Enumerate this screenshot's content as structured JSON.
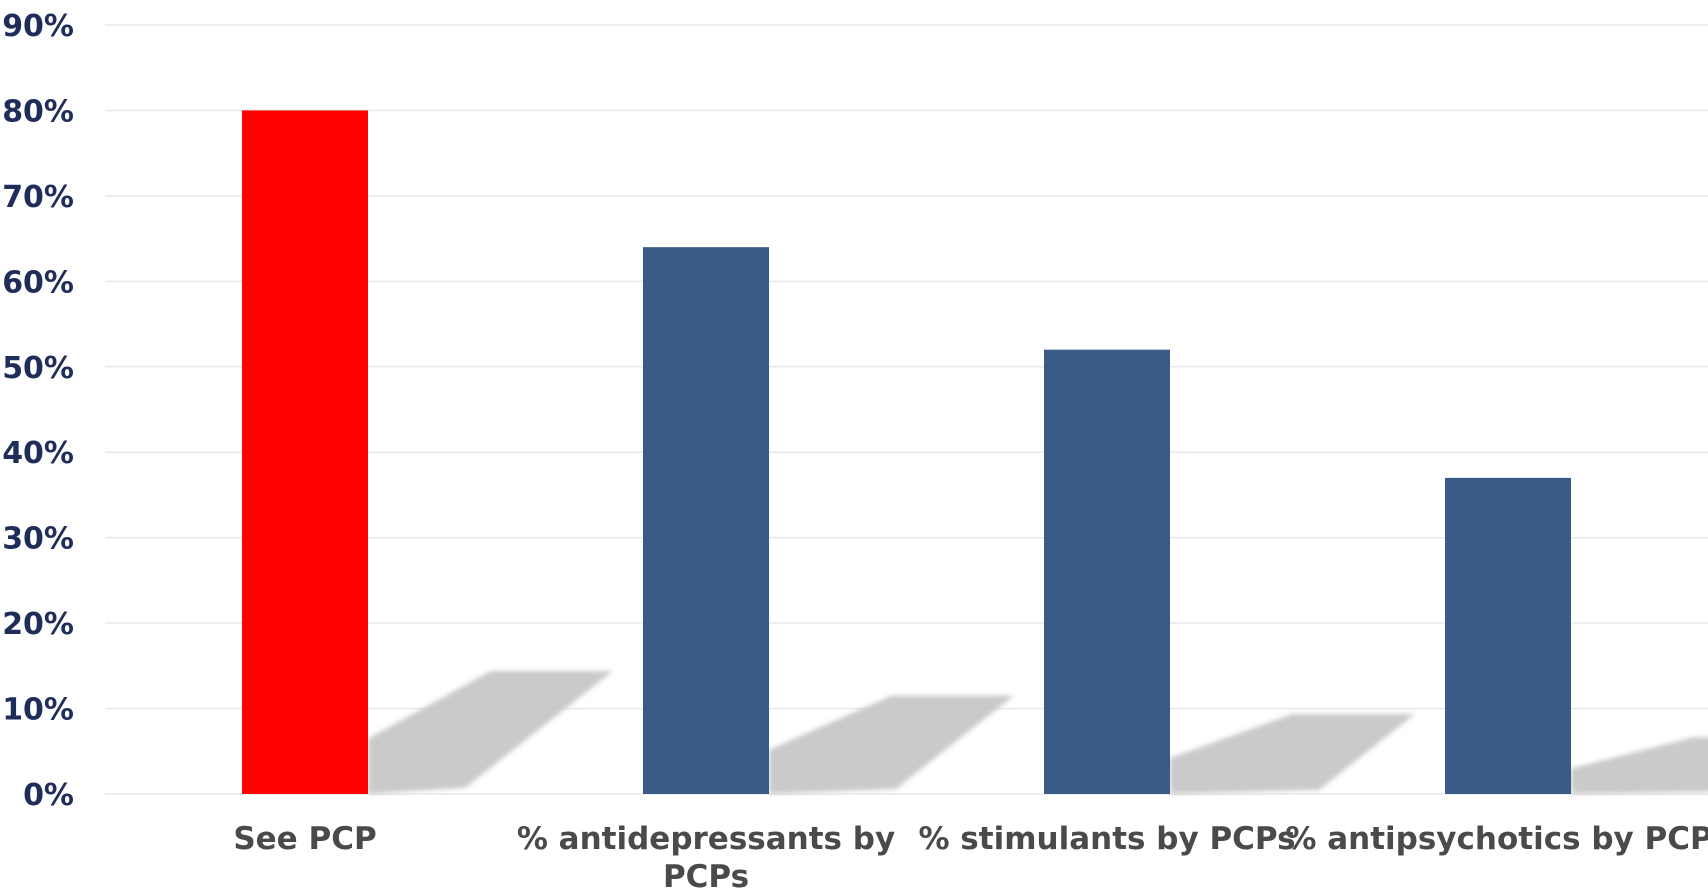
{
  "chart_data": {
    "type": "bar",
    "categories": [
      [
        "See PCP"
      ],
      [
        "% antidepressants by",
        "PCPs"
      ],
      [
        "% stimulants by PCPs"
      ],
      [
        "% antipsychotics by PCPs"
      ]
    ],
    "values": [
      80,
      64,
      52,
      37
    ],
    "ylim": [
      0,
      90
    ],
    "y_ticks": [
      "0%",
      "10%",
      "20%",
      "30%",
      "40%",
      "50%",
      "60%",
      "70%",
      "80%",
      "90%"
    ],
    "grid": true,
    "colors": {
      "highlight": "#ff0000",
      "bars": "#3a5a87",
      "shadow": "#c8c8c8",
      "grid": "#e8e8e8",
      "y_tick_text": "#1f2d5a",
      "x_tick_text": "#4a4a4a"
    },
    "highlight_index": 0
  }
}
